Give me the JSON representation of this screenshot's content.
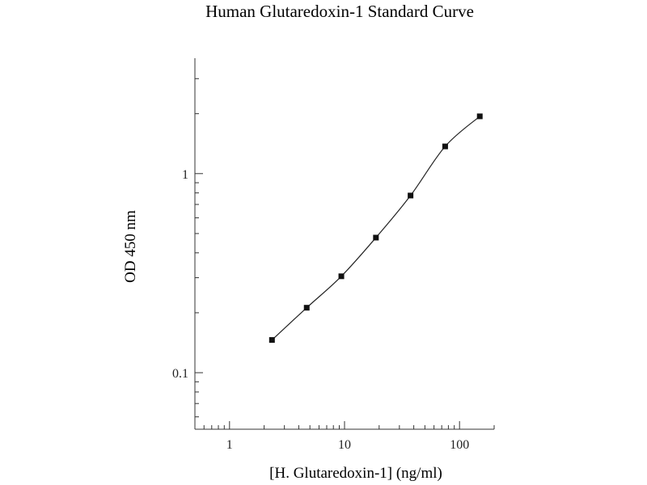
{
  "chart_data": {
    "type": "scatter",
    "title": "Human Glutaredoxin-1 Standard Curve",
    "xlabel": "[H. Glutaredoxin-1] (ng/ml)",
    "ylabel": "OD 450 nm",
    "xscale": "log",
    "yscale": "log",
    "xlim": [
      0.5,
      200
    ],
    "ylim": [
      0.052,
      3.8
    ],
    "x_tick_labels": [
      {
        "value": 1,
        "label": "1"
      },
      {
        "value": 10,
        "label": "10"
      },
      {
        "value": 100,
        "label": "100"
      }
    ],
    "y_tick_labels": [
      {
        "value": 0.1,
        "label": "0.1"
      },
      {
        "value": 1,
        "label": "1"
      }
    ],
    "grid": false,
    "legend": "none",
    "fit_curve": true,
    "series": [
      {
        "x": [
          2.34,
          4.69,
          9.38,
          18.75,
          37.5,
          75,
          150
        ],
        "y": [
          0.146,
          0.212,
          0.305,
          0.477,
          0.776,
          1.37,
          1.94
        ]
      }
    ],
    "colors": {
      "axis": "#333333",
      "marker": "#111111",
      "line": "#222222",
      "text": "#222222"
    }
  }
}
